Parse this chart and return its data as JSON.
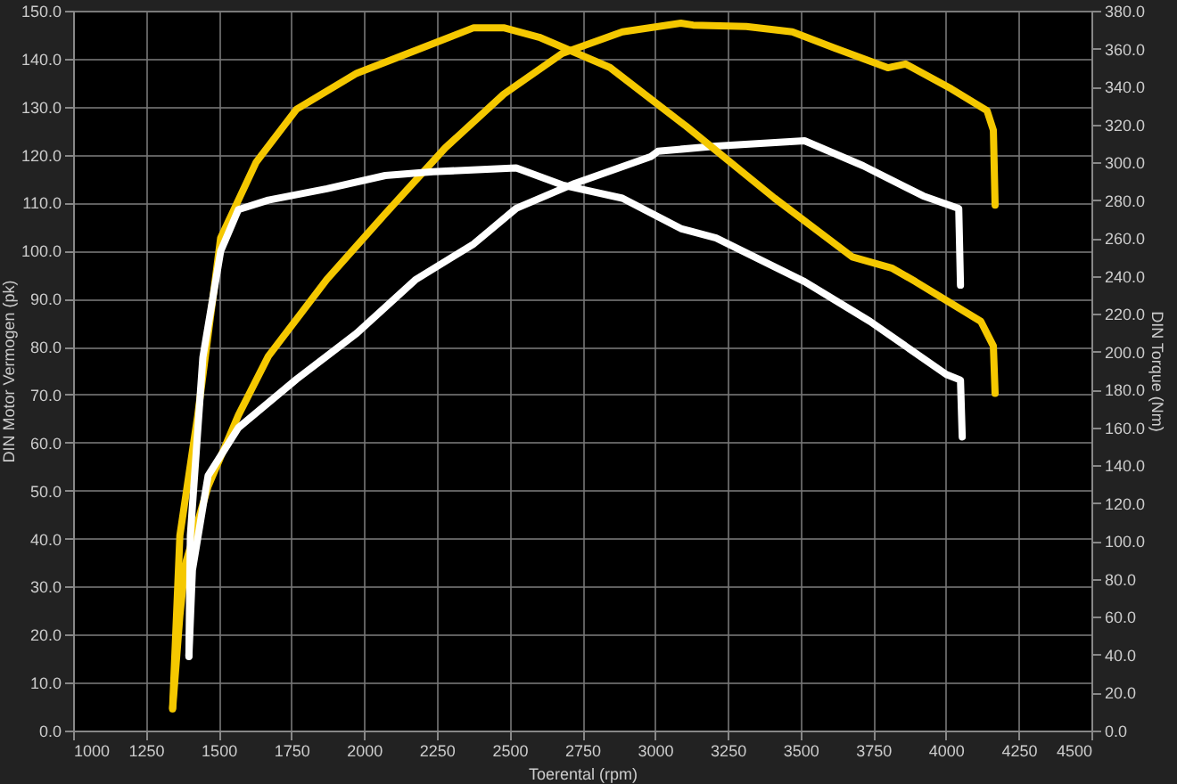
{
  "chart_data": {
    "type": "line",
    "xlabel": "Toerental (rpm)",
    "ylabel": "DIN Motor Vermogen (pk)",
    "y2label": "DIN Torque (Nm)",
    "xlim": [
      1000,
      4500
    ],
    "xticks": [
      1000,
      1250,
      1500,
      1750,
      2000,
      2250,
      2500,
      2750,
      3000,
      3250,
      3500,
      3750,
      4000,
      4250,
      4500
    ],
    "ylim": [
      0,
      150
    ],
    "yticks": [
      {
        "value": 0,
        "label": "0.0"
      },
      {
        "value": 10,
        "label": "10.0"
      },
      {
        "value": 20,
        "label": "20.0"
      },
      {
        "value": 30,
        "label": "30.0"
      },
      {
        "value": 40,
        "label": "40.0"
      },
      {
        "value": 50,
        "label": "50.0"
      },
      {
        "value": 60,
        "label": "60.0"
      },
      {
        "value": 70,
        "label": "70.0"
      },
      {
        "value": 80,
        "label": "80.0"
      },
      {
        "value": 90,
        "label": "90.0"
      },
      {
        "value": 100,
        "label": "100.0"
      },
      {
        "value": 110,
        "label": "110.0"
      },
      {
        "value": 120,
        "label": "120.0"
      },
      {
        "value": 130,
        "label": "130.0"
      },
      {
        "value": 140,
        "label": "140.0"
      },
      {
        "value": 150,
        "label": "150.0"
      }
    ],
    "y2lim": [
      0,
      380
    ],
    "y2ticks": [
      {
        "value": 0,
        "label": "0.0"
      },
      {
        "value": 20,
        "label": "20.0"
      },
      {
        "value": 40,
        "label": "40.0"
      },
      {
        "value": 60,
        "label": "60.0"
      },
      {
        "value": 80,
        "label": "80.0"
      },
      {
        "value": 100,
        "label": "100.0"
      },
      {
        "value": 120,
        "label": "120.0"
      },
      {
        "value": 140,
        "label": "140.0"
      },
      {
        "value": 160,
        "label": "160.0"
      },
      {
        "value": 180,
        "label": "180.0"
      },
      {
        "value": 200,
        "label": "200.0"
      },
      {
        "value": 220,
        "label": "220.0"
      },
      {
        "value": 240,
        "label": "240.0"
      },
      {
        "value": 260,
        "label": "260.0"
      },
      {
        "value": 280,
        "label": "280.0"
      },
      {
        "value": 300,
        "label": "300.0"
      },
      {
        "value": 320,
        "label": "320.0"
      },
      {
        "value": 340,
        "label": "340.0"
      },
      {
        "value": 360,
        "label": "360.0"
      },
      {
        "value": 380,
        "label": "380.0"
      }
    ],
    "grid": true,
    "marker": "none",
    "line_style": "solid",
    "series": [
      {
        "color": "#f5c800",
        "axis": "y2",
        "x": [
          1342,
          1367,
          1428,
          1507,
          1629,
          1768,
          1975,
          2176,
          2377,
          2480,
          2602,
          2845,
          3107,
          3411,
          3678,
          3816,
          3895,
          4120,
          4163,
          4169
        ],
        "values": [
          12,
          103,
          166,
          260,
          300,
          328,
          347,
          359,
          371,
          371,
          366,
          350,
          319,
          281,
          250,
          244,
          237,
          216,
          203,
          178
        ]
      },
      {
        "color": "#f5c800",
        "x": [
          1342,
          1367,
          1385,
          1464,
          1568,
          1671,
          1872,
          2073,
          2279,
          2480,
          2681,
          2888,
          3089,
          3131,
          3314,
          3472,
          3618,
          3800,
          3861,
          4019,
          4141,
          4163,
          4169
        ],
        "values": [
          4.5,
          24,
          34.5,
          50.9,
          65.7,
          78.0,
          94.0,
          107.7,
          121.4,
          132.6,
          141.1,
          145.6,
          147.4,
          147.0,
          146.7,
          145.6,
          142.2,
          138.1,
          138.9,
          133.7,
          129.2,
          125.1,
          109.5
        ]
      },
      {
        "color": "#ffffff",
        "axis": "y2",
        "x": [
          1398,
          1403,
          1446,
          1507,
          1568,
          1671,
          1872,
          2073,
          2237,
          2523,
          2681,
          2888,
          3089,
          3210,
          3514,
          3739,
          4001,
          4050,
          4056
        ],
        "values": [
          39,
          103,
          197,
          253,
          275,
          280,
          286,
          293,
          295,
          297,
          288,
          281,
          265,
          260,
          237,
          216,
          188,
          185,
          155
        ]
      },
      {
        "color": "#ffffff",
        "x": [
          1398,
          1410,
          1464,
          1568,
          1768,
          1975,
          2176,
          2377,
          2523,
          2724,
          2986,
          3010,
          3210,
          3514,
          3715,
          3922,
          4044,
          4050
        ],
        "values": [
          15.6,
          33.4,
          53.1,
          63.1,
          73.2,
          82.8,
          93.9,
          101.4,
          108.8,
          114.0,
          119.6,
          120.7,
          121.8,
          122.9,
          117.7,
          111.4,
          108.8,
          92.8
        ]
      }
    ]
  }
}
